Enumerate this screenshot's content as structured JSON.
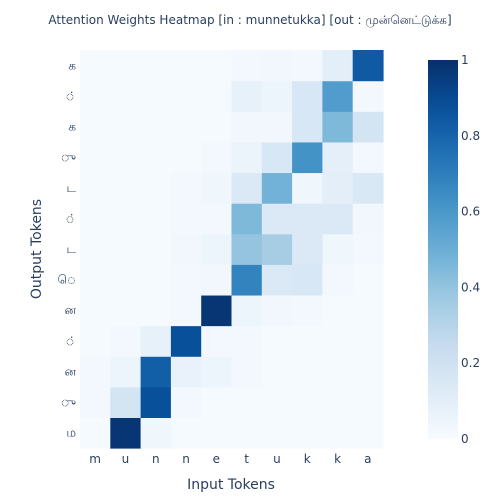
{
  "chart_data": {
    "type": "heatmap",
    "title": "Attention Weights Heatmap [in : munnetukka] [out : முன்னெட்டுக்க]",
    "xlabel": "Input Tokens",
    "ylabel": "Output Tokens",
    "x": [
      "m",
      "u",
      "n",
      "n",
      "e",
      "t",
      "u",
      "k",
      "k",
      "a"
    ],
    "y": [
      "ம",
      "ு",
      "ன",
      "்",
      "ன",
      "ெ",
      "ட",
      "்",
      "ட",
      "ு",
      "க",
      "்",
      "க"
    ],
    "z": [
      [
        0.01,
        0.98,
        0.04,
        0.01,
        0.01,
        0.01,
        0.01,
        0.01,
        0.01,
        0.01
      ],
      [
        0.02,
        0.18,
        0.88,
        0.02,
        0.01,
        0.01,
        0.01,
        0.01,
        0.01,
        0.01
      ],
      [
        0.02,
        0.05,
        0.82,
        0.07,
        0.05,
        0.02,
        0.01,
        0.01,
        0.01,
        0.01
      ],
      [
        0.01,
        0.02,
        0.08,
        0.88,
        0.02,
        0.02,
        0.01,
        0.01,
        0.01,
        0.01
      ],
      [
        0.01,
        0.01,
        0.01,
        0.02,
        0.98,
        0.05,
        0.03,
        0.02,
        0.01,
        0.01
      ],
      [
        0.01,
        0.01,
        0.01,
        0.02,
        0.03,
        0.68,
        0.14,
        0.16,
        0.02,
        0.01
      ],
      [
        0.01,
        0.01,
        0.01,
        0.03,
        0.05,
        0.4,
        0.35,
        0.14,
        0.04,
        0.02
      ],
      [
        0.01,
        0.01,
        0.01,
        0.02,
        0.02,
        0.45,
        0.14,
        0.14,
        0.14,
        0.03
      ],
      [
        0.01,
        0.01,
        0.01,
        0.02,
        0.04,
        0.14,
        0.48,
        0.04,
        0.1,
        0.15
      ],
      [
        0.01,
        0.01,
        0.01,
        0.01,
        0.02,
        0.06,
        0.16,
        0.62,
        0.09,
        0.02
      ],
      [
        0.01,
        0.01,
        0.01,
        0.01,
        0.01,
        0.03,
        0.03,
        0.16,
        0.45,
        0.18
      ],
      [
        0.01,
        0.01,
        0.01,
        0.01,
        0.01,
        0.08,
        0.05,
        0.16,
        0.58,
        0.02
      ],
      [
        0.01,
        0.01,
        0.01,
        0.01,
        0.01,
        0.02,
        0.03,
        0.02,
        0.1,
        0.84
      ]
    ],
    "zmin": 0,
    "zmax": 1,
    "colorscale": "Blues",
    "colorbar_ticks": [
      0,
      0.2,
      0.4,
      0.6,
      0.8,
      1
    ],
    "colorbar_tick_labels": [
      "0",
      "0.2",
      "0.4",
      "0.6",
      "0.8",
      "1"
    ],
    "grid": false
  }
}
